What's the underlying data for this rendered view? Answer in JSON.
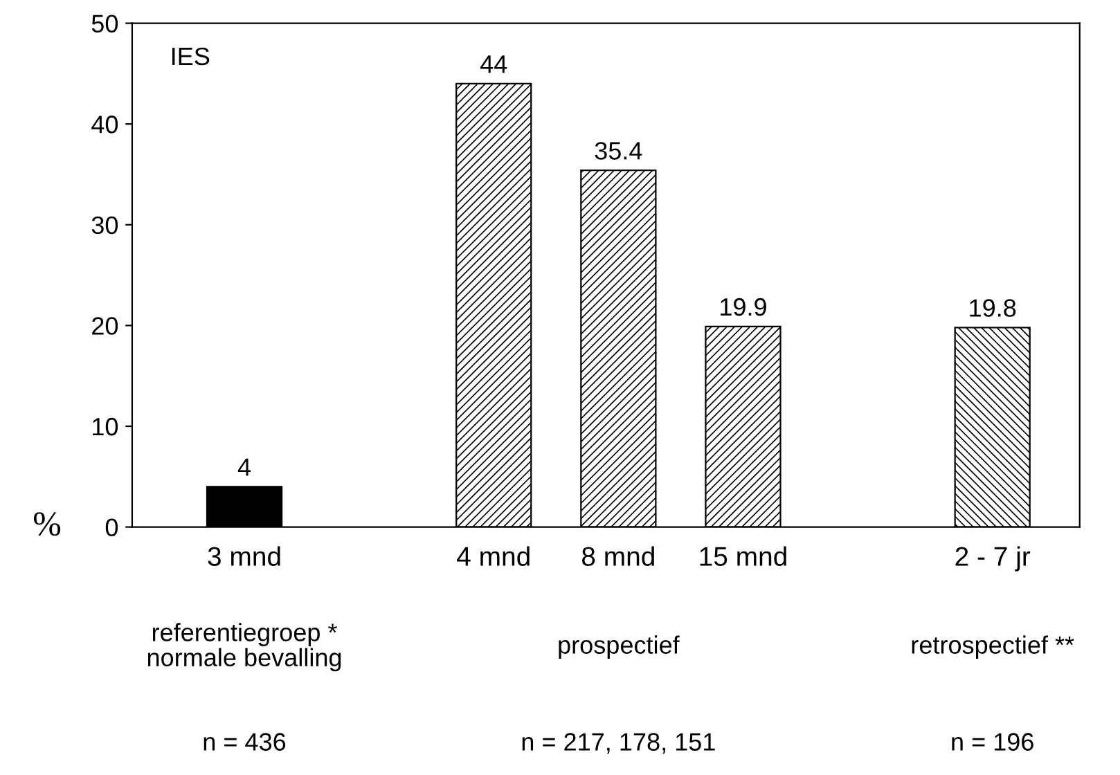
{
  "chart_data": {
    "type": "bar",
    "title": "IES",
    "ylabel": "%",
    "categories": [
      "3 mnd",
      null,
      "4 mnd",
      "8 mnd",
      "15 mnd",
      null,
      "2 - 7 jr"
    ],
    "series": [
      {
        "color": "#000000",
        "values": [
          4,
          null,
          null,
          null,
          null,
          null,
          null
        ]
      },
      {
        "color": "#000000",
        "values": [
          null,
          null,
          44,
          35.4,
          19.9,
          null,
          null
        ]
      },
      {
        "color": "#000000",
        "values": [
          null,
          null,
          null,
          null,
          null,
          null,
          19.8
        ]
      }
    ],
    "ylim": [
      0,
      50
    ],
    "yticks": [
      0,
      10,
      20,
      30,
      40,
      50
    ],
    "grid": false,
    "legend": false,
    "data_labels": true,
    "annotations": [
      "referentiegroep *\nnormale bevalling",
      "prospectief",
      "retrospectief **",
      "n = 436",
      "n = 217, 178, 151",
      "n = 196"
    ]
  }
}
